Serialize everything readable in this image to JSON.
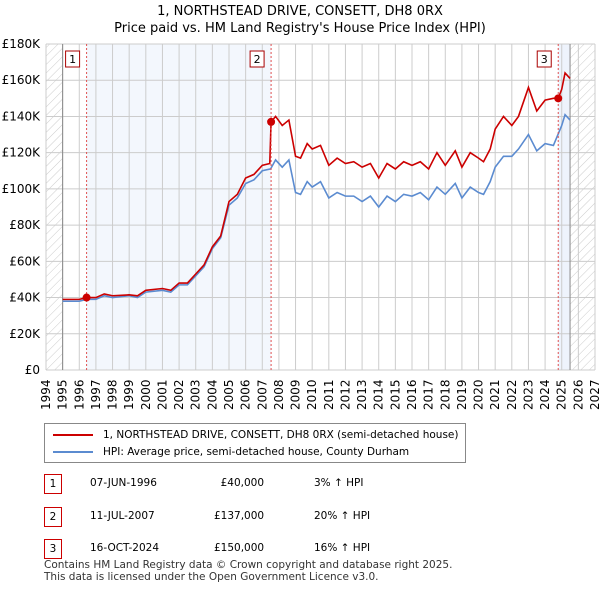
{
  "chart_data": {
    "type": "line",
    "title": "1, NORTHSTEAD DRIVE, CONSETT, DH8 0RX",
    "subtitle": "Price paid vs. HM Land Registry's House Price Index (HPI)",
    "xlim": [
      1994,
      2027
    ],
    "ylim": [
      0,
      180000
    ],
    "y_ticks": [
      "£0",
      "£20K",
      "£40K",
      "£60K",
      "£80K",
      "£100K",
      "£120K",
      "£140K",
      "£160K",
      "£180K"
    ],
    "x_ticks": [
      "1994",
      "1995",
      "1996",
      "1997",
      "1998",
      "1999",
      "2000",
      "2001",
      "2002",
      "2003",
      "2004",
      "2005",
      "2006",
      "2007",
      "2008",
      "2009",
      "2010",
      "2011",
      "2012",
      "2013",
      "2014",
      "2015",
      "2016",
      "2017",
      "2018",
      "2019",
      "2020",
      "2021",
      "2022",
      "2023",
      "2024",
      "2025",
      "2026",
      "2027"
    ],
    "grid": true,
    "series": [
      {
        "name": "1, NORTHSTEAD DRIVE, CONSETT, DH8 0RX (semi-detached house)",
        "color": "#cc0000",
        "x": [
          1995,
          1996,
          1996.44,
          1997,
          1997.5,
          1998,
          1999,
          1999.5,
          2000,
          2001,
          2001.5,
          2002,
          2002.5,
          2003,
          2003.5,
          2004,
          2004.5,
          2005,
          2005.5,
          2006,
          2006.5,
          2007,
          2007.45,
          2007.53,
          2007.8,
          2008.2,
          2008.6,
          2009,
          2009.3,
          2009.7,
          2010,
          2010.5,
          2011,
          2011.5,
          2012,
          2012.5,
          2013,
          2013.5,
          2014,
          2014.5,
          2015,
          2015.5,
          2016,
          2016.5,
          2017,
          2017.5,
          2018,
          2018.6,
          2019,
          2019.5,
          2020,
          2020.3,
          2020.7,
          2021,
          2021.5,
          2022,
          2022.4,
          2023,
          2023.5,
          2024,
          2024.5,
          2024.79,
          2025,
          2025.2,
          2025.5
        ],
        "y": [
          39000,
          39000,
          40000,
          40000,
          42000,
          41000,
          41500,
          41000,
          44000,
          45000,
          44000,
          48000,
          48000,
          53000,
          58000,
          68000,
          74000,
          93000,
          97000,
          106000,
          108000,
          113000,
          114000,
          137000,
          140000,
          135000,
          138000,
          118000,
          117000,
          125000,
          122000,
          124000,
          113000,
          117000,
          114000,
          115000,
          112000,
          114000,
          106000,
          114000,
          111000,
          115000,
          113000,
          115000,
          111000,
          120000,
          113000,
          121000,
          112000,
          120000,
          117000,
          115000,
          122000,
          133000,
          140000,
          135000,
          140000,
          156000,
          143000,
          149000,
          150000,
          150000,
          155000,
          164000,
          161000
        ]
      },
      {
        "name": "HPI: Average price, semi-detached house, County Durham",
        "color": "#5b8bd0",
        "x": [
          1995,
          1996,
          1996.44,
          1997,
          1997.5,
          1998,
          1999,
          1999.5,
          2000,
          2001,
          2001.5,
          2002,
          2002.5,
          2003,
          2003.5,
          2004,
          2004.5,
          2005,
          2005.5,
          2006,
          2006.5,
          2007,
          2007.5,
          2007.8,
          2008.2,
          2008.6,
          2009,
          2009.3,
          2009.7,
          2010,
          2010.5,
          2011,
          2011.5,
          2012,
          2012.5,
          2013,
          2013.5,
          2014,
          2014.5,
          2015,
          2015.5,
          2016,
          2016.5,
          2017,
          2017.5,
          2018,
          2018.6,
          2019,
          2019.5,
          2020,
          2020.3,
          2020.7,
          2021,
          2021.5,
          2022,
          2022.4,
          2023,
          2023.5,
          2024,
          2024.5,
          2025,
          2025.2,
          2025.5
        ],
        "y": [
          38000,
          38000,
          39000,
          39000,
          41000,
          40000,
          41000,
          40000,
          43000,
          44000,
          43000,
          47000,
          47000,
          52000,
          57000,
          67000,
          73000,
          91000,
          95000,
          103000,
          105000,
          110000,
          111000,
          116000,
          112000,
          116000,
          98000,
          97000,
          104000,
          101000,
          104000,
          95000,
          98000,
          96000,
          96000,
          93000,
          96000,
          90000,
          96000,
          93000,
          97000,
          96000,
          98000,
          94000,
          101000,
          97000,
          103000,
          95000,
          101000,
          98000,
          97000,
          104000,
          112000,
          118000,
          118000,
          122000,
          130000,
          121000,
          125000,
          124000,
          135000,
          141000,
          138000
        ]
      }
    ],
    "sales": [
      {
        "label": "1",
        "x": 1996.44,
        "y": 40000,
        "date": "07-JUN-1996",
        "price": "£40,000",
        "hpi": "3% ↑ HPI"
      },
      {
        "label": "2",
        "x": 2007.53,
        "y": 137000,
        "date": "11-JUL-2007",
        "price": "£137,000",
        "hpi": "20% ↑ HPI"
      },
      {
        "label": "3",
        "x": 2024.79,
        "y": 150000,
        "date": "16-OCT-2024",
        "price": "£150,000",
        "hpi": "16% ↑ HPI"
      }
    ],
    "legend_position": "bottom"
  },
  "footer": {
    "line1": "Contains HM Land Registry data © Crown copyright and database right 2025.",
    "line2": "This data is licensed under the Open Government Licence v3.0."
  }
}
